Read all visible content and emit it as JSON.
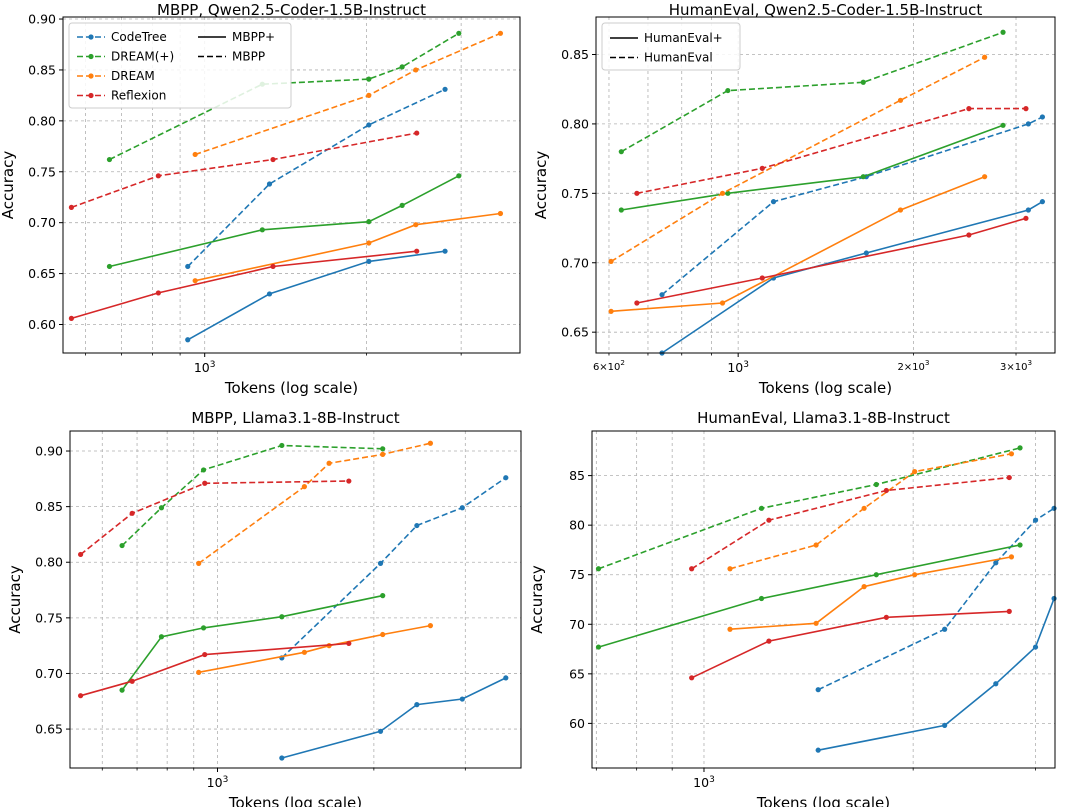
{
  "colors": {
    "CodeTree": "#1f77b4",
    "DREAM(+)": "#2ca02c",
    "DREAM": "#ff7f0e",
    "Reflexion": "#d62728"
  },
  "legend": {
    "methods": [
      "CodeTree",
      "DREAM(+)",
      "DREAM",
      "Reflexion"
    ],
    "styles_mbpp": [
      {
        "label": "MBPP+",
        "dash": false
      },
      {
        "label": "MBPP",
        "dash": true
      }
    ],
    "styles_he": [
      {
        "label": "HumanEval+",
        "dash": false
      },
      {
        "label": "HumanEval",
        "dash": true
      }
    ]
  },
  "chart_data": [
    {
      "type": "line",
      "title": "MBPP, Qwen2.5-Coder-1.5B-Instruct",
      "xlabel": "Tokens (log scale)",
      "ylabel": "Accuracy",
      "xscale": "log",
      "xlim": [
        545,
        3860
      ],
      "ylim": [
        0.572,
        0.902
      ],
      "yticks": [
        0.6,
        0.65,
        0.7,
        0.75,
        0.8,
        0.85,
        0.9
      ],
      "ytick_labels": [
        "0.60",
        "0.65",
        "0.70",
        "0.75",
        "0.80",
        "0.85",
        "0.90"
      ],
      "xtick_major": [
        {
          "v": 1000,
          "label": "10^3"
        }
      ],
      "xtick_minor": [],
      "minor_x": [
        600,
        700,
        800,
        900,
        2000,
        3000
      ],
      "legend_loc": "upper left",
      "legend_kind": "mbpp",
      "series": [
        {
          "name": "CodeTree",
          "dash": true,
          "x": [
            930,
            1320,
            2020,
            2800
          ],
          "y": [
            0.657,
            0.738,
            0.796,
            0.831
          ]
        },
        {
          "name": "CodeTree",
          "dash": false,
          "x": [
            930,
            1320,
            2020,
            2800
          ],
          "y": [
            0.585,
            0.63,
            0.662,
            0.672
          ]
        },
        {
          "name": "DREAM(+)",
          "dash": true,
          "x": [
            665,
            1280,
            2020,
            2330,
            2970
          ],
          "y": [
            0.762,
            0.836,
            0.841,
            0.853,
            0.886
          ]
        },
        {
          "name": "DREAM(+)",
          "dash": false,
          "x": [
            665,
            1280,
            2020,
            2330,
            2970
          ],
          "y": [
            0.657,
            0.693,
            0.701,
            0.717,
            0.746
          ]
        },
        {
          "name": "DREAM",
          "dash": true,
          "x": [
            960,
            2020,
            2470,
            3550
          ],
          "y": [
            0.767,
            0.825,
            0.85,
            0.886
          ]
        },
        {
          "name": "DREAM",
          "dash": false,
          "x": [
            960,
            2020,
            2470,
            3550
          ],
          "y": [
            0.643,
            0.68,
            0.698,
            0.709
          ]
        },
        {
          "name": "Reflexion",
          "dash": true,
          "x": [
            565,
            820,
            1340,
            2480
          ],
          "y": [
            0.715,
            0.746,
            0.762,
            0.788
          ]
        },
        {
          "name": "Reflexion",
          "dash": false,
          "x": [
            565,
            820,
            1340,
            2480
          ],
          "y": [
            0.606,
            0.631,
            0.657,
            0.672
          ]
        }
      ]
    },
    {
      "type": "line",
      "title": "HumanEval, Qwen2.5-Coder-1.5B-Instruct",
      "xlabel": "Tokens (log scale)",
      "ylabel": "Accuracy",
      "xscale": "log",
      "xlim": [
        570,
        3500
      ],
      "ylim": [
        0.635,
        0.877
      ],
      "yticks": [
        0.65,
        0.7,
        0.75,
        0.8,
        0.85
      ],
      "ytick_labels": [
        "0.65",
        "0.70",
        "0.75",
        "0.80",
        "0.85"
      ],
      "xtick_major": [
        {
          "v": 1000,
          "label": "10^3"
        }
      ],
      "xtick_minor": [
        {
          "v": 600,
          "label": "6×10^2"
        },
        {
          "v": 2000,
          "label": "2×10^3"
        },
        {
          "v": 3000,
          "label": "3×10^3"
        }
      ],
      "minor_x": [
        600,
        700,
        800,
        900,
        2000,
        3000
      ],
      "legend_loc": "upper left",
      "legend_kind": "he",
      "series": [
        {
          "name": "CodeTree",
          "dash": true,
          "x": [
            740,
            1150,
            1660,
            3150,
            3330
          ],
          "y": [
            0.677,
            0.744,
            0.762,
            0.8,
            0.805
          ]
        },
        {
          "name": "CodeTree",
          "dash": false,
          "x": [
            740,
            1150,
            1660,
            3150,
            3330
          ],
          "y": [
            0.635,
            0.689,
            0.707,
            0.738,
            0.744
          ]
        },
        {
          "name": "DREAM(+)",
          "dash": true,
          "x": [
            630,
            960,
            1640,
            2850
          ],
          "y": [
            0.78,
            0.824,
            0.83,
            0.866
          ]
        },
        {
          "name": "DREAM(+)",
          "dash": false,
          "x": [
            630,
            960,
            1640,
            2850
          ],
          "y": [
            0.738,
            0.75,
            0.762,
            0.799
          ]
        },
        {
          "name": "DREAM",
          "dash": true,
          "x": [
            605,
            940,
            1900,
            2650
          ],
          "y": [
            0.701,
            0.75,
            0.817,
            0.848
          ]
        },
        {
          "name": "DREAM",
          "dash": false,
          "x": [
            605,
            940,
            1900,
            2650
          ],
          "y": [
            0.665,
            0.671,
            0.738,
            0.762
          ]
        },
        {
          "name": "Reflexion",
          "dash": true,
          "x": [
            670,
            1100,
            2490,
            3120
          ],
          "y": [
            0.75,
            0.768,
            0.811,
            0.811
          ]
        },
        {
          "name": "Reflexion",
          "dash": false,
          "x": [
            670,
            1100,
            2490,
            3120
          ],
          "y": [
            0.671,
            0.689,
            0.72,
            0.732
          ]
        }
      ]
    },
    {
      "type": "line",
      "title": "MBPP, Llama3.1-8B-Instruct",
      "xlabel": "Tokens (log scale)",
      "ylabel": "Accuracy",
      "xscale": "log",
      "xlim": [
        520,
        3840
      ],
      "ylim": [
        0.615,
        0.918
      ],
      "yticks": [
        0.65,
        0.7,
        0.75,
        0.8,
        0.85,
        0.9
      ],
      "ytick_labels": [
        "0.65",
        "0.70",
        "0.75",
        "0.80",
        "0.85",
        "0.90"
      ],
      "xtick_major": [
        {
          "v": 1000,
          "label": "10^3"
        }
      ],
      "xtick_minor": [],
      "minor_x": [
        600,
        700,
        800,
        900,
        2000,
        3000
      ],
      "legend_loc": "none",
      "legend_kind": "none",
      "series": [
        {
          "name": "CodeTree",
          "dash": true,
          "x": [
            1330,
            2060,
            2420,
            2960,
            3590
          ],
          "y": [
            0.714,
            0.799,
            0.833,
            0.849,
            0.876
          ]
        },
        {
          "name": "CodeTree",
          "dash": false,
          "x": [
            1330,
            2060,
            2420,
            2960,
            3590
          ],
          "y": [
            0.624,
            0.648,
            0.672,
            0.677,
            0.696
          ]
        },
        {
          "name": "DREAM(+)",
          "dash": true,
          "x": [
            655,
            780,
            940,
            1330,
            2080
          ],
          "y": [
            0.815,
            0.849,
            0.883,
            0.905,
            0.902
          ]
        },
        {
          "name": "DREAM(+)",
          "dash": false,
          "x": [
            655,
            780,
            940,
            1330,
            2080
          ],
          "y": [
            0.685,
            0.733,
            0.741,
            0.751,
            0.77
          ]
        },
        {
          "name": "DREAM",
          "dash": true,
          "x": [
            920,
            1470,
            1640,
            2080,
            2570
          ],
          "y": [
            0.799,
            0.868,
            0.889,
            0.897,
            0.907
          ]
        },
        {
          "name": "DREAM",
          "dash": false,
          "x": [
            920,
            1470,
            1640,
            2080,
            2570
          ],
          "y": [
            0.701,
            0.719,
            0.725,
            0.735,
            0.743
          ]
        },
        {
          "name": "Reflexion",
          "dash": true,
          "x": [
            545,
            685,
            945,
            1790
          ],
          "y": [
            0.807,
            0.844,
            0.871,
            0.873
          ]
        },
        {
          "name": "Reflexion",
          "dash": false,
          "x": [
            545,
            685,
            945,
            1790
          ],
          "y": [
            0.68,
            0.693,
            0.717,
            0.727
          ]
        }
      ]
    },
    {
      "type": "line",
      "title": "HumanEval, Llama3.1-8B-Instruct",
      "xlabel": "Tokens (log scale)",
      "ylabel": "Accuracy",
      "xscale": "log",
      "xlim": [
        690,
        3200
      ],
      "ylim": [
        55.5,
        89.5
      ],
      "yticks": [
        60,
        65,
        70,
        75,
        80,
        85
      ],
      "ytick_labels": [
        "60",
        "65",
        "70",
        "75",
        "80",
        "85"
      ],
      "xtick_major": [
        {
          "v": 1000,
          "label": "10^3"
        }
      ],
      "xtick_minor": [],
      "minor_x": [
        700,
        800,
        900,
        2000,
        3000
      ],
      "legend_loc": "none",
      "legend_kind": "none",
      "series": [
        {
          "name": "CodeTree",
          "dash": true,
          "x": [
            1460,
            2220,
            2630,
            3000,
            3190
          ],
          "y": [
            63.4,
            69.5,
            76.2,
            80.5,
            81.7
          ]
        },
        {
          "name": "CodeTree",
          "dash": false,
          "x": [
            1460,
            2220,
            2630,
            3000,
            3190
          ],
          "y": [
            57.3,
            59.8,
            64.0,
            67.7,
            72.6
          ]
        },
        {
          "name": "DREAM(+)",
          "dash": true,
          "x": [
            705,
            1210,
            1770,
            2850
          ],
          "y": [
            75.6,
            81.7,
            84.1,
            87.8
          ]
        },
        {
          "name": "DREAM(+)",
          "dash": false,
          "x": [
            705,
            1210,
            1770,
            2850
          ],
          "y": [
            67.7,
            72.6,
            75.0,
            78.0
          ]
        },
        {
          "name": "DREAM",
          "dash": true,
          "x": [
            1090,
            1450,
            1700,
            2010,
            2770
          ],
          "y": [
            75.6,
            78.0,
            81.7,
            85.4,
            87.2
          ]
        },
        {
          "name": "DREAM",
          "dash": false,
          "x": [
            1090,
            1450,
            1700,
            2010,
            2770
          ],
          "y": [
            69.5,
            70.1,
            73.8,
            75.0,
            76.8
          ]
        },
        {
          "name": "Reflexion",
          "dash": true,
          "x": [
            960,
            1240,
            1830,
            2750
          ],
          "y": [
            75.6,
            80.5,
            83.5,
            84.8
          ]
        },
        {
          "name": "Reflexion",
          "dash": false,
          "x": [
            960,
            1240,
            1830,
            2750
          ],
          "y": [
            64.6,
            68.3,
            70.7,
            71.3
          ]
        }
      ]
    }
  ]
}
